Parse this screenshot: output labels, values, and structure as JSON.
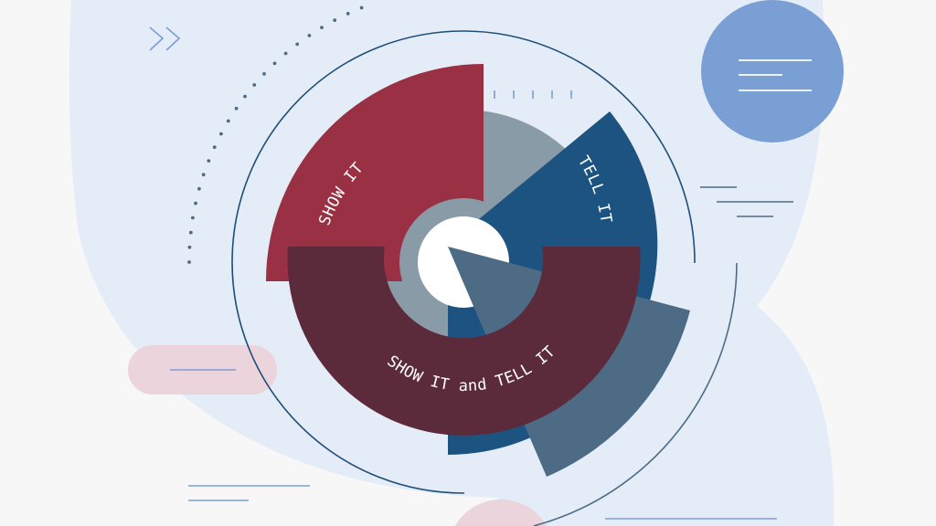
{
  "labels": {
    "show": "SHOW IT",
    "tell": "TELL IT",
    "both": "SHOW IT and TELL IT"
  },
  "colors": {
    "background": "#f7f7f8",
    "blob": "#e4edf7",
    "show": "#9a3044",
    "tell": "#1d5380",
    "both": "#5c2b3b",
    "gray": "#8a9ba8",
    "slate": "#4e6b86",
    "accent_blue": "#7a9fd4",
    "pink": "#ecd4dd",
    "outline": "#1f4e79"
  },
  "icons": {
    "chevrons": "double-chevron-right-icon",
    "menu": "menu-lines-icon"
  }
}
